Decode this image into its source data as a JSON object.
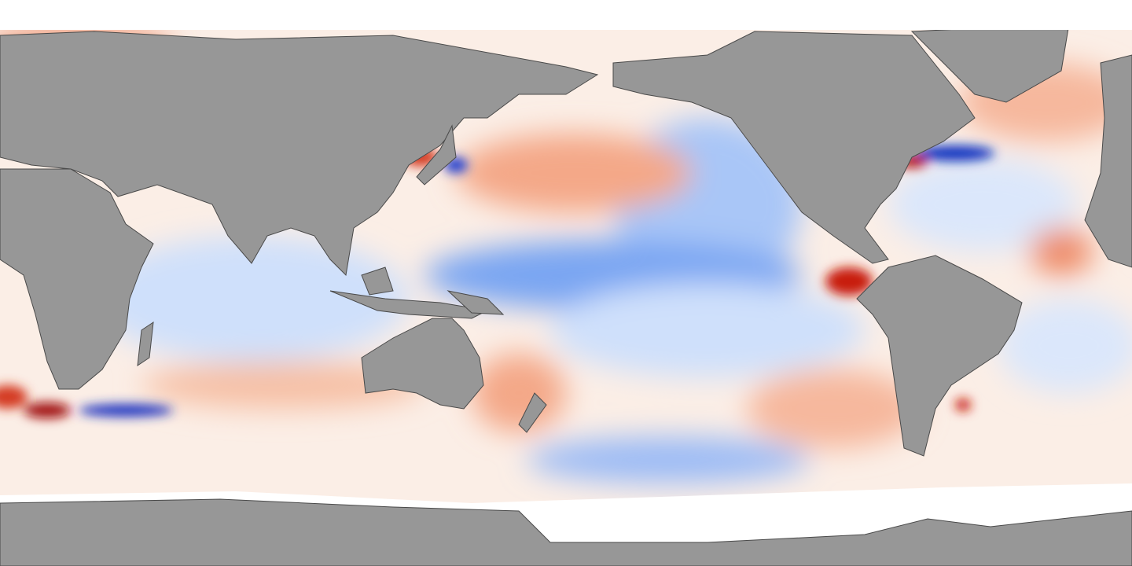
{
  "map": {
    "type": "sea-surface-temperature-anomaly",
    "projection": "equirectangular",
    "colors": {
      "land": "#979797",
      "ice": "#ffffff",
      "sea_ice_edge": "#d9d9d9",
      "neutral": "#ffffff",
      "warm_light": "#f9c9b0",
      "warm": "#ef7a55",
      "warm_strong": "#c81e0f",
      "warm_extreme": "#7a0000",
      "cool_light": "#cfe0fb",
      "cool": "#7aa6f2",
      "cool_strong": "#2a55e0",
      "cool_extreme": "#00109a",
      "coastline": "#4a4a4a"
    }
  }
}
